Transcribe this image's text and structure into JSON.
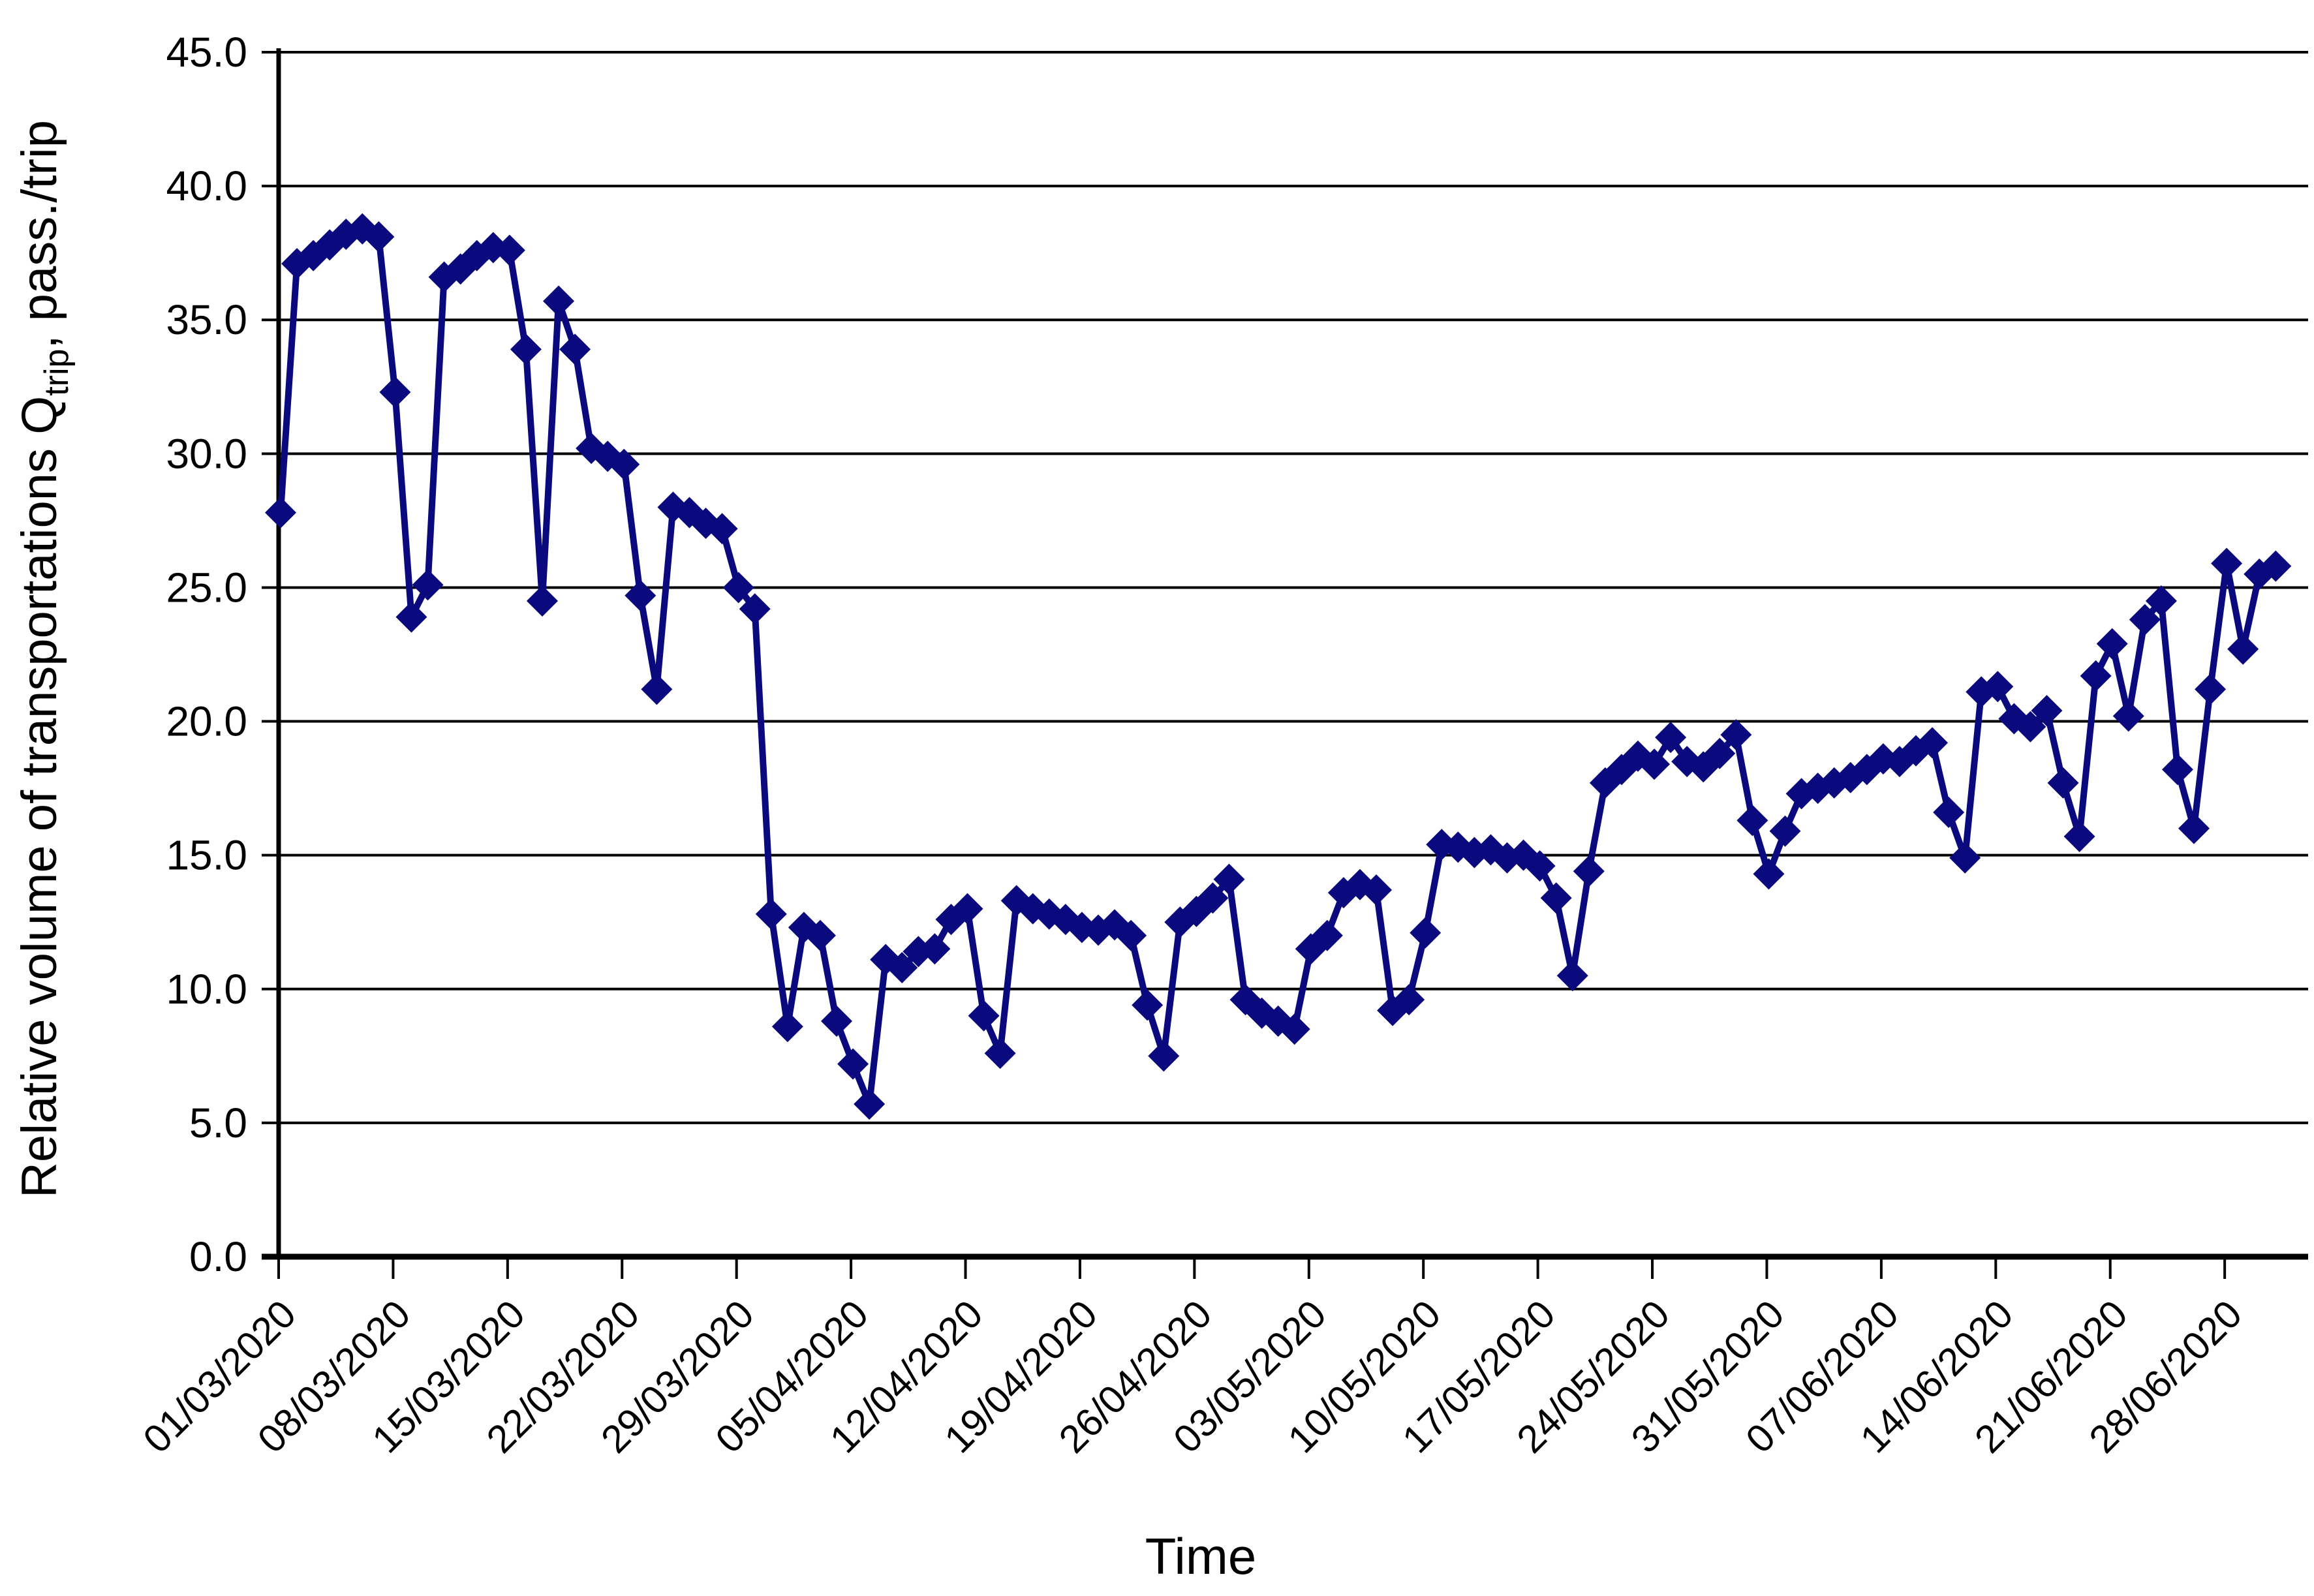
{
  "chart_data": {
    "type": "line",
    "title": "",
    "xlabel": "Time",
    "ylabel_main": "Relative volume of transportations Q",
    "ylabel_sub": "trip",
    "ylabel_tail": ",  pass./trip",
    "x_unit": "day, daily series starting 01/03/2020",
    "ylim": [
      0,
      45
    ],
    "y_tick_step": 5,
    "y_tick_labels": [
      "0.0",
      "5.0",
      "10.0",
      "15.0",
      "20.0",
      "25.0",
      "30.0",
      "35.0",
      "40.0",
      "45.0"
    ],
    "x_tick_labels": [
      "01/03/2020",
      "08/03/2020",
      "15/03/2020",
      "22/03/2020",
      "29/03/2020",
      "05/04/2020",
      "12/04/2020",
      "19/04/2020",
      "26/04/2020",
      "03/05/2020",
      "10/05/2020",
      "17/05/2020",
      "24/05/2020",
      "31/05/2020",
      "07/06/2020",
      "14/06/2020",
      "21/06/2020",
      "28/06/2020"
    ],
    "x_tick_day_indices": [
      0,
      7,
      14,
      21,
      28,
      35,
      42,
      49,
      56,
      63,
      70,
      77,
      84,
      91,
      98,
      105,
      112,
      119
    ],
    "grid": "horizontal-only",
    "legend": "none",
    "marker": "diamond",
    "series_color": "#0a0a7e",
    "axis_color": "#000000",
    "values": [
      27.8,
      37.1,
      37.4,
      37.8,
      38.2,
      38.4,
      38.1,
      32.3,
      23.9,
      25.1,
      36.6,
      36.9,
      37.4,
      37.7,
      37.6,
      33.9,
      24.5,
      35.7,
      33.9,
      30.2,
      29.9,
      29.6,
      24.7,
      21.2,
      28.0,
      27.8,
      27.4,
      27.2,
      25.0,
      24.2,
      12.8,
      8.6,
      12.3,
      12.0,
      8.8,
      7.2,
      5.7,
      11.1,
      10.8,
      11.4,
      11.5,
      12.6,
      13.0,
      9.0,
      7.6,
      13.3,
      13.0,
      12.8,
      12.6,
      12.3,
      12.2,
      12.4,
      12.0,
      9.4,
      7.5,
      12.5,
      12.9,
      13.4,
      14.1,
      9.6,
      9.1,
      8.8,
      8.5,
      11.5,
      12.0,
      13.6,
      13.9,
      13.7,
      9.2,
      9.6,
      12.1,
      15.4,
      15.3,
      15.1,
      15.2,
      14.9,
      15.0,
      14.6,
      13.4,
      10.5,
      14.4,
      17.7,
      18.2,
      18.7,
      18.4,
      19.4,
      18.5,
      18.3,
      18.8,
      19.5,
      16.3,
      14.3,
      15.9,
      17.3,
      17.5,
      17.7,
      17.9,
      18.2,
      18.6,
      18.5,
      18.9,
      19.2,
      16.6,
      14.9,
      21.1,
      21.3,
      20.1,
      19.8,
      20.4,
      17.7,
      15.7,
      21.7,
      22.9,
      20.2,
      23.8,
      24.5,
      18.2,
      16.0,
      21.2,
      25.9,
      22.7,
      25.5,
      25.8
    ]
  }
}
